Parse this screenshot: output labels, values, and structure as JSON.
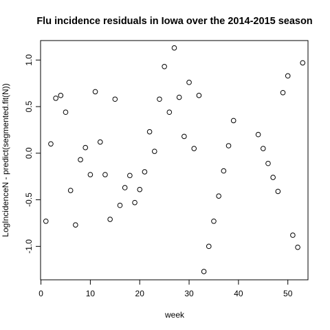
{
  "chart_data": {
    "type": "scatter",
    "title": "Flu incidence residuals in Iowa over the 2014-2015 season",
    "xlabel": "week",
    "ylabel": "LogIncidenceN - predict(segmented.fit(N))",
    "xlim": [
      -0.08,
      54.08
    ],
    "ylim": [
      -1.359,
      1.209
    ],
    "xticks": [
      0,
      10,
      20,
      30,
      40,
      50
    ],
    "yticks": [
      -1.0,
      -0.5,
      0.0,
      0.5,
      1.0
    ],
    "xtick_labels": [
      "0",
      "10",
      "20",
      "30",
      "40",
      "50"
    ],
    "ytick_labels": [
      "-1.0",
      "-0.5",
      "0.0",
      "0.5",
      "1.0"
    ],
    "marker": "open-circle",
    "grid": false,
    "x": [
      1,
      2,
      3,
      4,
      5,
      6,
      7,
      8,
      9,
      10,
      11,
      12,
      13,
      14,
      15,
      16,
      17,
      18,
      19,
      20,
      21,
      22,
      23,
      24,
      25,
      26,
      27,
      28,
      29,
      30,
      31,
      32,
      33,
      34,
      35,
      36,
      37,
      38,
      39,
      44,
      45,
      46,
      47,
      48,
      49,
      50,
      51,
      52,
      53
    ],
    "y": [
      -0.73,
      0.1,
      0.59,
      0.62,
      0.44,
      -0.4,
      -0.77,
      -0.07,
      0.06,
      -0.23,
      0.66,
      0.12,
      -0.23,
      -0.71,
      0.58,
      -0.56,
      -0.37,
      -0.24,
      -0.53,
      -0.39,
      -0.2,
      0.23,
      0.02,
      0.58,
      0.93,
      0.44,
      1.13,
      0.6,
      0.18,
      0.76,
      0.05,
      0.62,
      -1.27,
      -1.0,
      -0.73,
      -0.46,
      -0.19,
      0.08,
      0.35,
      0.2,
      0.05,
      -0.11,
      -0.26,
      -0.41,
      0.65,
      0.83,
      -0.88,
      -1.01,
      0.97
    ]
  }
}
